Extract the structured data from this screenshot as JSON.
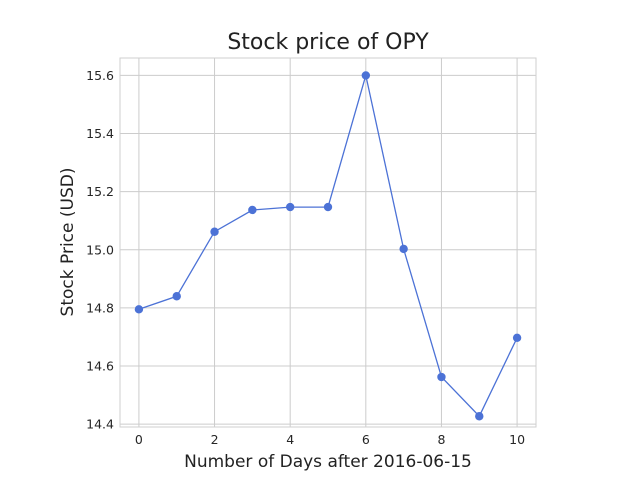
{
  "chart_data": {
    "type": "line",
    "title": "Stock price of OPY",
    "xlabel": "Number of Days after 2016-06-15",
    "ylabel": "Stock Price (USD)",
    "x": [
      0,
      1,
      2,
      3,
      4,
      5,
      6,
      7,
      8,
      9,
      10
    ],
    "series": [
      {
        "values": [
          14.795,
          14.84,
          15.062,
          15.137,
          15.147,
          15.147,
          15.6,
          15.003,
          14.562,
          14.427,
          14.697
        ],
        "color": "#4c72d6",
        "marker": "circle"
      }
    ],
    "xlim": [
      -0.5,
      10.5
    ],
    "ylim": [
      14.39,
      15.66
    ],
    "x_ticks": [
      "0",
      "2",
      "4",
      "6",
      "8",
      "10"
    ],
    "y_ticks": [
      "14.4",
      "14.6",
      "14.8",
      "15.0",
      "15.2",
      "15.4",
      "15.6"
    ],
    "grid": true,
    "legend": "none"
  }
}
